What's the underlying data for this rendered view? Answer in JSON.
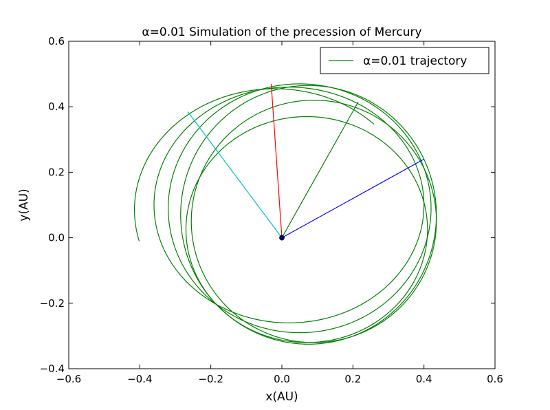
{
  "chart_data": {
    "type": "line",
    "title": "α=0.01  Simulation of the precession of Mercury",
    "xlabel": "x(AU)",
    "ylabel": "y(AU)",
    "xlim": [
      -0.6,
      0.6
    ],
    "ylim": [
      -0.4,
      0.6
    ],
    "xticks": [
      -0.6,
      -0.4,
      -0.2,
      0.0,
      0.2,
      0.4,
      0.6
    ],
    "yticks": [
      -0.4,
      -0.2,
      0.0,
      0.2,
      0.4,
      0.6
    ],
    "xtick_labels": [
      "−0.6",
      "−0.4",
      "−0.2",
      "0.0",
      "0.2",
      "0.4",
      "0.6"
    ],
    "ytick_labels": [
      "−0.4",
      "−0.2",
      "0.0",
      "0.2",
      "0.4",
      "0.6"
    ],
    "grid": false,
    "legend": {
      "placement": "top-right",
      "entries": [
        "α=0.01 trajectory"
      ]
    },
    "series": [
      {
        "name": "α=0.01 trajectory",
        "color": "#008000",
        "orbits": [
          {
            "cx": 0.07,
            "cy": 0.025,
            "rx": 0.34,
            "ry": 0.345,
            "start_deg": 0,
            "end_deg": 360
          },
          {
            "cx": 0.09,
            "cy": 0.05,
            "rx": 0.345,
            "ry": 0.37,
            "start_deg": 0,
            "end_deg": 360
          },
          {
            "cx": 0.075,
            "cy": 0.07,
            "rx": 0.36,
            "ry": 0.395,
            "start_deg": 0,
            "end_deg": 360
          },
          {
            "cx": 0.05,
            "cy": 0.09,
            "rx": 0.37,
            "ry": 0.38,
            "start_deg": 0,
            "end_deg": 360
          },
          {
            "cx": 0.02,
            "cy": 0.1,
            "rx": 0.38,
            "ry": 0.36,
            "start_deg": 0,
            "end_deg": 360
          },
          {
            "cx": -0.02,
            "cy": 0.085,
            "rx": 0.395,
            "ry": 0.37,
            "start_deg": 45,
            "end_deg": 195
          }
        ]
      }
    ],
    "perihelion_lines": [
      {
        "color": "#0000ff",
        "from": [
          0.0,
          0.0
        ],
        "to": [
          0.4,
          0.24
        ]
      },
      {
        "color": "#008000",
        "from": [
          0.0,
          0.0
        ],
        "to": [
          0.215,
          0.415
        ]
      },
      {
        "color": "#ff0000",
        "from": [
          0.0,
          0.0
        ],
        "to": [
          -0.03,
          0.47
        ]
      },
      {
        "color": "#00bfbf",
        "from": [
          0.0,
          0.0
        ],
        "to": [
          -0.265,
          0.385
        ]
      }
    ],
    "sun": {
      "x": 0.0,
      "y": 0.0,
      "color": "#000080"
    }
  }
}
